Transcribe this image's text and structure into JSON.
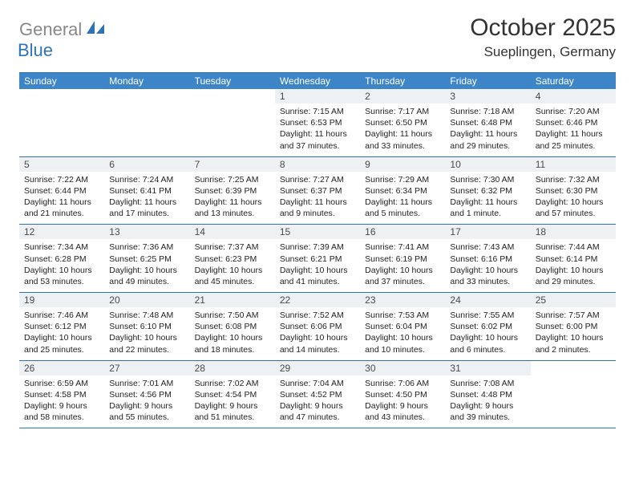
{
  "brand": {
    "part1": "General",
    "part2": "Blue"
  },
  "title": "October 2025",
  "location": "Sueplingen, Germany",
  "colors": {
    "header_bg": "#3d85c6",
    "header_text": "#ffffff",
    "row_border": "#2f73b7",
    "daynum_bg": "#edf1f4",
    "daynum_text": "#4a4a4a",
    "body_text": "#222222",
    "brand_gray": "#888888",
    "brand_blue": "#2f73b7",
    "title_color": "#333333",
    "page_bg": "#ffffff"
  },
  "typography": {
    "title_fontsize": 30,
    "location_fontsize": 17,
    "dayheader_fontsize": 12,
    "daynum_fontsize": 12,
    "body_fontsize": 10.5
  },
  "day_names": [
    "Sunday",
    "Monday",
    "Tuesday",
    "Wednesday",
    "Thursday",
    "Friday",
    "Saturday"
  ],
  "weeks": [
    [
      {
        "num": "",
        "sunrise": "",
        "sunset": "",
        "daylight": ""
      },
      {
        "num": "",
        "sunrise": "",
        "sunset": "",
        "daylight": ""
      },
      {
        "num": "",
        "sunrise": "",
        "sunset": "",
        "daylight": ""
      },
      {
        "num": "1",
        "sunrise": "Sunrise: 7:15 AM",
        "sunset": "Sunset: 6:53 PM",
        "daylight": "Daylight: 11 hours and 37 minutes."
      },
      {
        "num": "2",
        "sunrise": "Sunrise: 7:17 AM",
        "sunset": "Sunset: 6:50 PM",
        "daylight": "Daylight: 11 hours and 33 minutes."
      },
      {
        "num": "3",
        "sunrise": "Sunrise: 7:18 AM",
        "sunset": "Sunset: 6:48 PM",
        "daylight": "Daylight: 11 hours and 29 minutes."
      },
      {
        "num": "4",
        "sunrise": "Sunrise: 7:20 AM",
        "sunset": "Sunset: 6:46 PM",
        "daylight": "Daylight: 11 hours and 25 minutes."
      }
    ],
    [
      {
        "num": "5",
        "sunrise": "Sunrise: 7:22 AM",
        "sunset": "Sunset: 6:44 PM",
        "daylight": "Daylight: 11 hours and 21 minutes."
      },
      {
        "num": "6",
        "sunrise": "Sunrise: 7:24 AM",
        "sunset": "Sunset: 6:41 PM",
        "daylight": "Daylight: 11 hours and 17 minutes."
      },
      {
        "num": "7",
        "sunrise": "Sunrise: 7:25 AM",
        "sunset": "Sunset: 6:39 PM",
        "daylight": "Daylight: 11 hours and 13 minutes."
      },
      {
        "num": "8",
        "sunrise": "Sunrise: 7:27 AM",
        "sunset": "Sunset: 6:37 PM",
        "daylight": "Daylight: 11 hours and 9 minutes."
      },
      {
        "num": "9",
        "sunrise": "Sunrise: 7:29 AM",
        "sunset": "Sunset: 6:34 PM",
        "daylight": "Daylight: 11 hours and 5 minutes."
      },
      {
        "num": "10",
        "sunrise": "Sunrise: 7:30 AM",
        "sunset": "Sunset: 6:32 PM",
        "daylight": "Daylight: 11 hours and 1 minute."
      },
      {
        "num": "11",
        "sunrise": "Sunrise: 7:32 AM",
        "sunset": "Sunset: 6:30 PM",
        "daylight": "Daylight: 10 hours and 57 minutes."
      }
    ],
    [
      {
        "num": "12",
        "sunrise": "Sunrise: 7:34 AM",
        "sunset": "Sunset: 6:28 PM",
        "daylight": "Daylight: 10 hours and 53 minutes."
      },
      {
        "num": "13",
        "sunrise": "Sunrise: 7:36 AM",
        "sunset": "Sunset: 6:25 PM",
        "daylight": "Daylight: 10 hours and 49 minutes."
      },
      {
        "num": "14",
        "sunrise": "Sunrise: 7:37 AM",
        "sunset": "Sunset: 6:23 PM",
        "daylight": "Daylight: 10 hours and 45 minutes."
      },
      {
        "num": "15",
        "sunrise": "Sunrise: 7:39 AM",
        "sunset": "Sunset: 6:21 PM",
        "daylight": "Daylight: 10 hours and 41 minutes."
      },
      {
        "num": "16",
        "sunrise": "Sunrise: 7:41 AM",
        "sunset": "Sunset: 6:19 PM",
        "daylight": "Daylight: 10 hours and 37 minutes."
      },
      {
        "num": "17",
        "sunrise": "Sunrise: 7:43 AM",
        "sunset": "Sunset: 6:16 PM",
        "daylight": "Daylight: 10 hours and 33 minutes."
      },
      {
        "num": "18",
        "sunrise": "Sunrise: 7:44 AM",
        "sunset": "Sunset: 6:14 PM",
        "daylight": "Daylight: 10 hours and 29 minutes."
      }
    ],
    [
      {
        "num": "19",
        "sunrise": "Sunrise: 7:46 AM",
        "sunset": "Sunset: 6:12 PM",
        "daylight": "Daylight: 10 hours and 25 minutes."
      },
      {
        "num": "20",
        "sunrise": "Sunrise: 7:48 AM",
        "sunset": "Sunset: 6:10 PM",
        "daylight": "Daylight: 10 hours and 22 minutes."
      },
      {
        "num": "21",
        "sunrise": "Sunrise: 7:50 AM",
        "sunset": "Sunset: 6:08 PM",
        "daylight": "Daylight: 10 hours and 18 minutes."
      },
      {
        "num": "22",
        "sunrise": "Sunrise: 7:52 AM",
        "sunset": "Sunset: 6:06 PM",
        "daylight": "Daylight: 10 hours and 14 minutes."
      },
      {
        "num": "23",
        "sunrise": "Sunrise: 7:53 AM",
        "sunset": "Sunset: 6:04 PM",
        "daylight": "Daylight: 10 hours and 10 minutes."
      },
      {
        "num": "24",
        "sunrise": "Sunrise: 7:55 AM",
        "sunset": "Sunset: 6:02 PM",
        "daylight": "Daylight: 10 hours and 6 minutes."
      },
      {
        "num": "25",
        "sunrise": "Sunrise: 7:57 AM",
        "sunset": "Sunset: 6:00 PM",
        "daylight": "Daylight: 10 hours and 2 minutes."
      }
    ],
    [
      {
        "num": "26",
        "sunrise": "Sunrise: 6:59 AM",
        "sunset": "Sunset: 4:58 PM",
        "daylight": "Daylight: 9 hours and 58 minutes."
      },
      {
        "num": "27",
        "sunrise": "Sunrise: 7:01 AM",
        "sunset": "Sunset: 4:56 PM",
        "daylight": "Daylight: 9 hours and 55 minutes."
      },
      {
        "num": "28",
        "sunrise": "Sunrise: 7:02 AM",
        "sunset": "Sunset: 4:54 PM",
        "daylight": "Daylight: 9 hours and 51 minutes."
      },
      {
        "num": "29",
        "sunrise": "Sunrise: 7:04 AM",
        "sunset": "Sunset: 4:52 PM",
        "daylight": "Daylight: 9 hours and 47 minutes."
      },
      {
        "num": "30",
        "sunrise": "Sunrise: 7:06 AM",
        "sunset": "Sunset: 4:50 PM",
        "daylight": "Daylight: 9 hours and 43 minutes."
      },
      {
        "num": "31",
        "sunrise": "Sunrise: 7:08 AM",
        "sunset": "Sunset: 4:48 PM",
        "daylight": "Daylight: 9 hours and 39 minutes."
      },
      {
        "num": "",
        "sunrise": "",
        "sunset": "",
        "daylight": ""
      }
    ]
  ]
}
